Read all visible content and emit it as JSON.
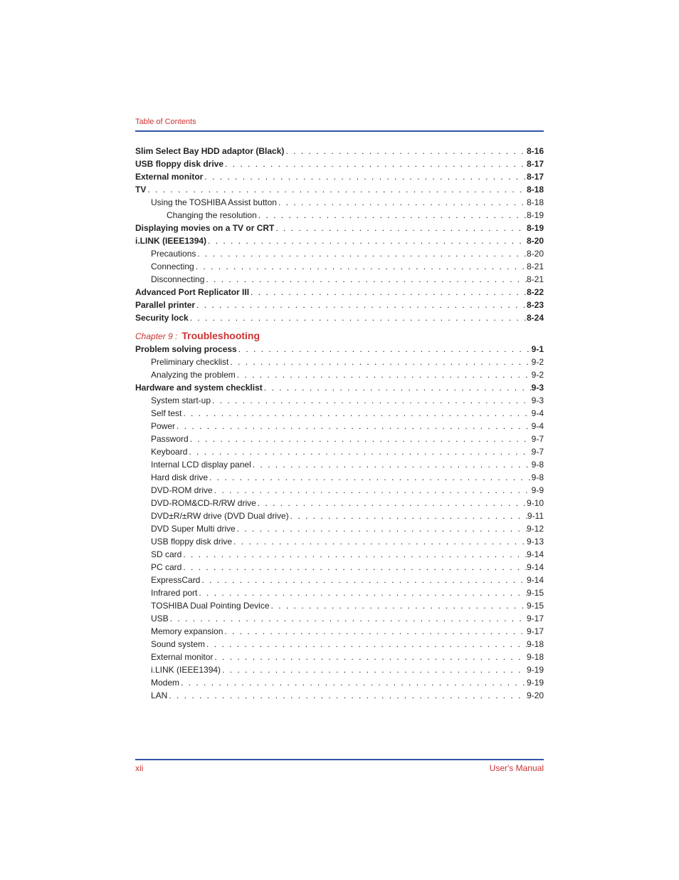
{
  "header": {
    "label": "Table of Contents"
  },
  "colors": {
    "accent_red": "#cc3333",
    "rule_blue": "#3355aa",
    "text": "#222222",
    "background": "#ffffff"
  },
  "typography": {
    "body_fontsize_pt": 9,
    "chapter_title_fontsize_pt": 11,
    "font_family": "Arial"
  },
  "chapter": {
    "prefix": "Chapter 9 :",
    "title": "Troubleshooting"
  },
  "entries": [
    {
      "label": "Slim Select Bay HDD adaptor (Black)",
      "page": "8-16",
      "level": 0,
      "bold": true
    },
    {
      "label": "USB floppy disk drive",
      "page": "8-17",
      "level": 0,
      "bold": true
    },
    {
      "label": "External monitor",
      "page": "8-17",
      "level": 0,
      "bold": true
    },
    {
      "label": "TV",
      "page": "8-18",
      "level": 0,
      "bold": true
    },
    {
      "label": "Using the TOSHIBA Assist button",
      "page": "8-18",
      "level": 1,
      "bold": false
    },
    {
      "label": "Changing the resolution",
      "page": "8-19",
      "level": 2,
      "bold": false
    },
    {
      "label": "Displaying movies on a TV or CRT",
      "page": "8-19",
      "level": 0,
      "bold": true
    },
    {
      "label": "i.LINK (IEEE1394)",
      "page": "8-20",
      "level": 0,
      "bold": true
    },
    {
      "label": "Precautions",
      "page": "8-20",
      "level": 1,
      "bold": false
    },
    {
      "label": "Connecting",
      "page": "8-21",
      "level": 1,
      "bold": false
    },
    {
      "label": "Disconnecting",
      "page": "8-21",
      "level": 1,
      "bold": false
    },
    {
      "label": "Advanced Port Replicator III",
      "page": "8-22",
      "level": 0,
      "bold": true
    },
    {
      "label": "Parallel printer",
      "page": "8-23",
      "level": 0,
      "bold": true
    },
    {
      "label": "Security lock",
      "page": "8-24",
      "level": 0,
      "bold": true
    }
  ],
  "entries2": [
    {
      "label": "Problem solving process",
      "page": "9-1",
      "level": 0,
      "bold": true
    },
    {
      "label": "Preliminary checklist",
      "page": "9-2",
      "level": 1,
      "bold": false
    },
    {
      "label": "Analyzing the problem",
      "page": "9-2",
      "level": 1,
      "bold": false
    },
    {
      "label": "Hardware and system checklist",
      "page": "9-3",
      "level": 0,
      "bold": true
    },
    {
      "label": "System start-up",
      "page": "9-3",
      "level": 1,
      "bold": false
    },
    {
      "label": "Self test",
      "page": "9-4",
      "level": 1,
      "bold": false
    },
    {
      "label": "Power",
      "page": "9-4",
      "level": 1,
      "bold": false
    },
    {
      "label": "Password",
      "page": "9-7",
      "level": 1,
      "bold": false
    },
    {
      "label": "Keyboard",
      "page": "9-7",
      "level": 1,
      "bold": false
    },
    {
      "label": "Internal LCD display panel",
      "page": "9-8",
      "level": 1,
      "bold": false
    },
    {
      "label": "Hard disk drive",
      "page": "9-8",
      "level": 1,
      "bold": false
    },
    {
      "label": "DVD-ROM drive",
      "page": "9-9",
      "level": 1,
      "bold": false
    },
    {
      "label": "DVD-ROM&CD-R/RW drive",
      "page": "9-10",
      "level": 1,
      "bold": false
    },
    {
      "label": "DVD±R/±RW drive (DVD Dual drive)",
      "page": "9-11",
      "level": 1,
      "bold": false
    },
    {
      "label": "DVD Super Multi drive",
      "page": "9-12",
      "level": 1,
      "bold": false
    },
    {
      "label": "USB floppy disk drive",
      "page": "9-13",
      "level": 1,
      "bold": false
    },
    {
      "label": "SD card",
      "page": "9-14",
      "level": 1,
      "bold": false
    },
    {
      "label": "PC card",
      "page": "9-14",
      "level": 1,
      "bold": false
    },
    {
      "label": "ExpressCard",
      "page": "9-14",
      "level": 1,
      "bold": false
    },
    {
      "label": "Infrared port",
      "page": "9-15",
      "level": 1,
      "bold": false
    },
    {
      "label": "TOSHIBA Dual Pointing Device",
      "page": "9-15",
      "level": 1,
      "bold": false
    },
    {
      "label": "USB",
      "page": "9-17",
      "level": 1,
      "bold": false
    },
    {
      "label": "Memory expansion",
      "page": "9-17",
      "level": 1,
      "bold": false
    },
    {
      "label": "Sound system",
      "page": "9-18",
      "level": 1,
      "bold": false
    },
    {
      "label": "External monitor",
      "page": "9-18",
      "level": 1,
      "bold": false
    },
    {
      "label": "i.LINK (IEEE1394)",
      "page": "9-19",
      "level": 1,
      "bold": false
    },
    {
      "label": "Modem",
      "page": "9-19",
      "level": 1,
      "bold": false
    },
    {
      "label": "LAN",
      "page": "9-20",
      "level": 1,
      "bold": false
    }
  ],
  "footer": {
    "left": "xii",
    "right": "User's Manual"
  }
}
